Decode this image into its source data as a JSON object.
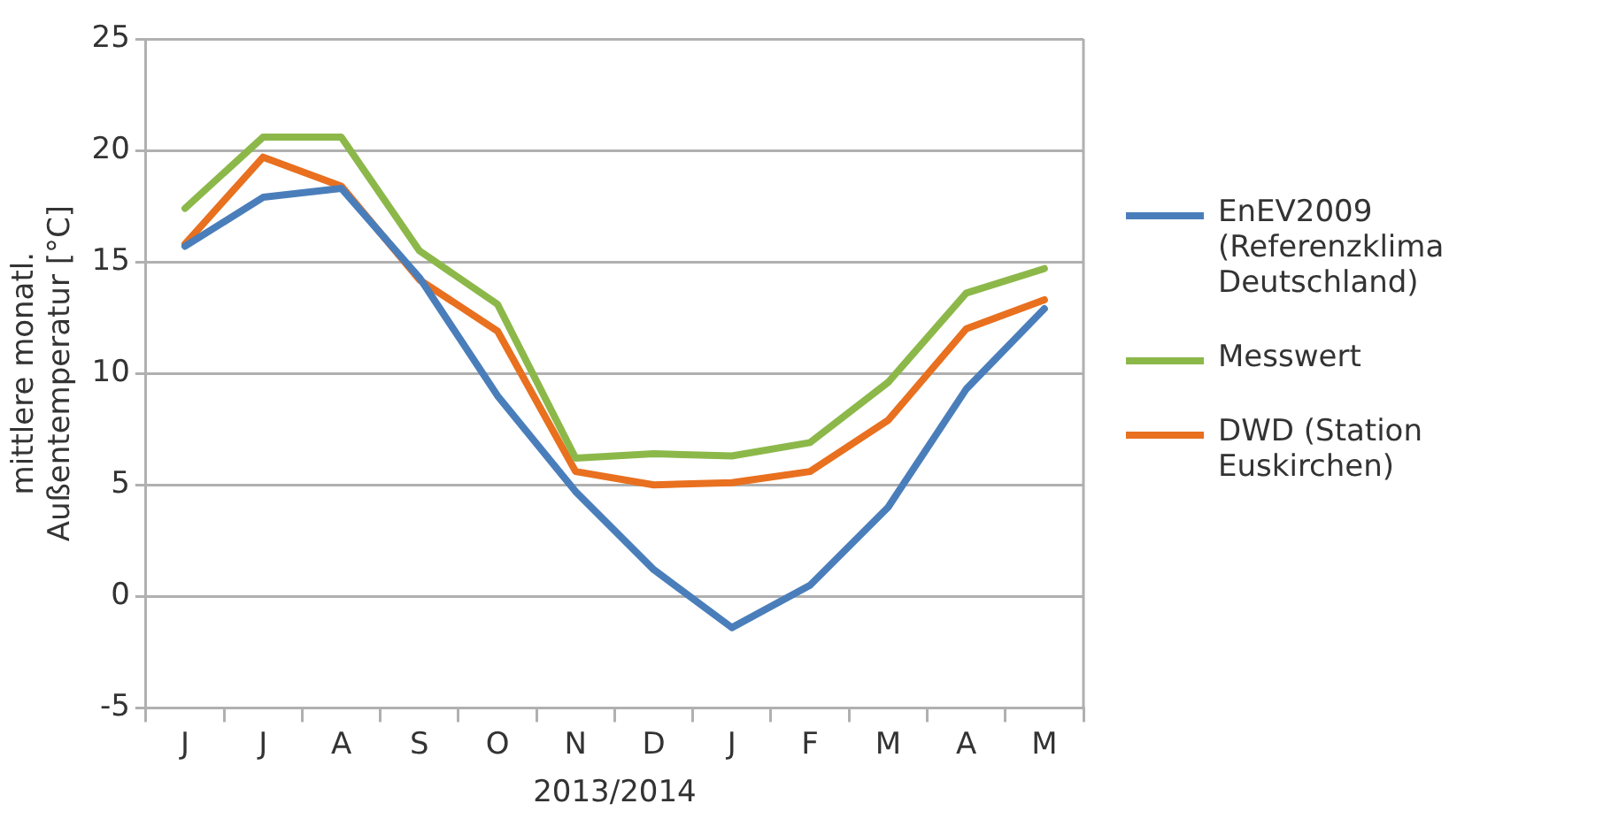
{
  "chart_data": {
    "type": "line",
    "xlabel": "2013/2014",
    "ylabel": "mittlere monatl. Außentemperatur [°C]",
    "categories": [
      "J",
      "J",
      "A",
      "S",
      "O",
      "N",
      "D",
      "J",
      "F",
      "M",
      "A",
      "M"
    ],
    "series": [
      {
        "name": "EnEV2009 (Referenzklima Deutschland)",
        "color": "#4a7ebb",
        "values": [
          15.7,
          17.9,
          18.3,
          14.3,
          9.0,
          4.7,
          1.2,
          -1.4,
          0.5,
          4.0,
          9.3,
          12.9
        ]
      },
      {
        "name": "Messwert",
        "color": "#8cb84a",
        "values": [
          17.4,
          20.6,
          20.6,
          15.5,
          13.1,
          6.2,
          6.4,
          6.3,
          6.9,
          9.6,
          13.6,
          14.7
        ]
      },
      {
        "name": "DWD (Station Euskirchen)",
        "color": "#e8701f",
        "values": [
          15.8,
          19.7,
          18.4,
          14.2,
          11.9,
          5.6,
          5.0,
          5.1,
          5.6,
          7.9,
          12.0,
          13.3
        ]
      }
    ],
    "ylim": [
      -5,
      25
    ],
    "yticks": [
      -5,
      0,
      5,
      10,
      15,
      20,
      25
    ],
    "grid": "y",
    "legend": "right",
    "marker": "none",
    "line_style": "solid"
  }
}
